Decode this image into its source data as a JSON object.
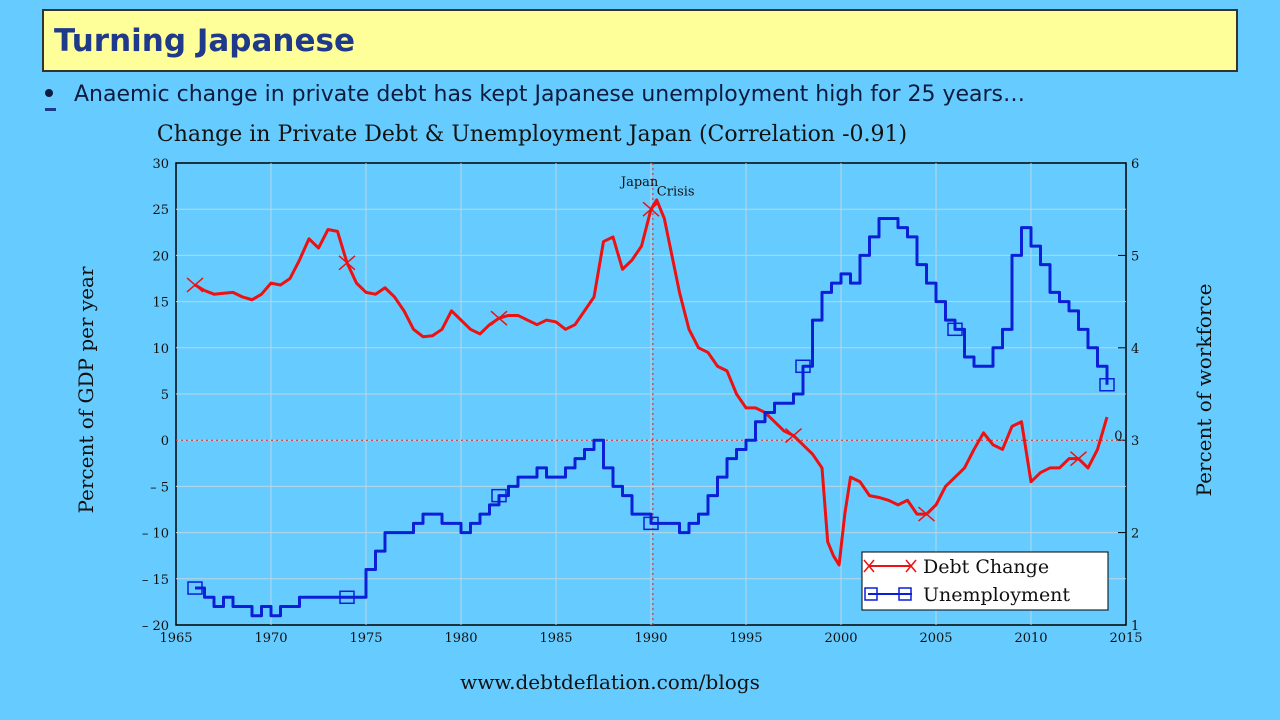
{
  "slide": {
    "title": "Turning Japanese",
    "bullet": "Anaemic change in private debt has kept Japanese unemployment high for 25 years…",
    "footer_url": "www.debtdeflation.com/blogs"
  },
  "colors": {
    "debt": "#ee1111",
    "unemployment": "#0b1fd6",
    "plot_bg": "#66ccff",
    "title_bg": "#ffff99",
    "title_text": "#1f3a8a"
  },
  "chart_data": {
    "type": "line",
    "title": "Change in Private Debt & Unemployment Japan (Correlation -0.91)",
    "xlabel": "",
    "ylabel": "Percent of GDP per year",
    "y2label": "Percent of workforce",
    "xlim": [
      1965,
      2015
    ],
    "ylim": [
      -20,
      30
    ],
    "y2lim": [
      1,
      6
    ],
    "x_ticks": [
      "1965",
      "1970",
      "1975",
      "1980",
      "1985",
      "1990",
      "1995",
      "2000",
      "2005",
      "2010",
      "2015"
    ],
    "y_ticks": [
      "30",
      "25",
      "20",
      "15",
      "10",
      "5",
      "0",
      "– 5",
      "– 10",
      "– 15",
      "– 20"
    ],
    "y2_ticks": [
      "6",
      "5",
      "4",
      "3",
      "2",
      "1"
    ],
    "grid": true,
    "legend": "bottom-right",
    "annotations": [
      {
        "text": "Japan",
        "x": 1989.4,
        "y": 27.5
      },
      {
        "text": "Crisis",
        "x": 1991.3,
        "y": 26.5
      },
      {
        "text": "0",
        "x": 2014.6,
        "y": 0
      }
    ],
    "reference_lines": [
      {
        "axis": "y",
        "value": 0
      },
      {
        "axis": "x",
        "value": 1990.1
      }
    ],
    "series": [
      {
        "name": "Debt Change",
        "axis": "left",
        "marker": "x",
        "x": [
          1966,
          1966.5,
          1967,
          1967.5,
          1968,
          1968.5,
          1969,
          1969.5,
          1970,
          1970.5,
          1971,
          1971.5,
          1972,
          1972.5,
          1973,
          1973.5,
          1974,
          1974.5,
          1975,
          1975.5,
          1976,
          1976.5,
          1977,
          1977.5,
          1978,
          1978.5,
          1979,
          1979.5,
          1980,
          1980.5,
          1981,
          1981.5,
          1982,
          1982.5,
          1983,
          1983.5,
          1984,
          1984.5,
          1985,
          1985.5,
          1986,
          1986.5,
          1987,
          1987.5,
          1988,
          1988.5,
          1989,
          1989.5,
          1990,
          1990.3,
          1990.7,
          1991,
          1991.5,
          1992,
          1992.5,
          1993,
          1993.5,
          1994,
          1994.5,
          1995,
          1995.5,
          1996,
          1996.5,
          1997,
          1997.5,
          1998,
          1998.5,
          1999,
          1999.3,
          1999.6,
          1999.9,
          2000.2,
          2000.5,
          2001,
          2001.5,
          2002,
          2002.5,
          2003,
          2003.5,
          2004,
          2004.5,
          2005,
          2005.5,
          2006,
          2006.5,
          2007,
          2007.5,
          2008,
          2008.5,
          2009,
          2009.5,
          2010,
          2010.5,
          2011,
          2011.5,
          2012,
          2012.5,
          2013,
          2013.5,
          2014
        ],
        "y": [
          16.8,
          16.2,
          15.8,
          15.9,
          16,
          15.5,
          15.2,
          15.8,
          17,
          16.8,
          17.5,
          19.5,
          21.8,
          20.8,
          22.8,
          22.6,
          19.2,
          17,
          16,
          15.8,
          16.5,
          15.5,
          14,
          12,
          11.2,
          11.3,
          12,
          14,
          13,
          12,
          11.5,
          12.5,
          13.2,
          13.5,
          13.5,
          13,
          12.5,
          13,
          12.8,
          12,
          12.5,
          14,
          15.5,
          21.5,
          22,
          18.5,
          19.5,
          21,
          25,
          26,
          24,
          21,
          16,
          12,
          10,
          9.5,
          8,
          7.5,
          5,
          3.5,
          3.5,
          3,
          2,
          1,
          0.5,
          -0.5,
          -1.5,
          -3,
          -11,
          -12.5,
          -13.5,
          -8,
          -4,
          -4.5,
          -6,
          -6.2,
          -6.5,
          -7,
          -6.5,
          -8,
          -8,
          -7,
          -5,
          -4,
          -3,
          -1,
          0.8,
          -0.5,
          -1,
          1.5,
          2,
          -4.5,
          -3.5,
          -3,
          -3,
          -2,
          -2,
          -3,
          -1,
          2.5
        ]
      },
      {
        "name": "Unemployment",
        "axis": "right",
        "marker": "square",
        "x": [
          1966,
          1966.5,
          1967,
          1967.5,
          1968,
          1968.5,
          1969,
          1969.5,
          1970,
          1970.5,
          1971,
          1971.5,
          1972,
          1972.5,
          1973,
          1973.5,
          1974,
          1974.5,
          1975,
          1975.5,
          1976,
          1976.5,
          1977,
          1977.5,
          1978,
          1978.5,
          1979,
          1979.5,
          1980,
          1980.5,
          1981,
          1981.5,
          1982,
          1982.5,
          1983,
          1983.5,
          1984,
          1984.5,
          1985,
          1985.5,
          1986,
          1986.5,
          1987,
          1987.5,
          1988,
          1988.5,
          1989,
          1989.5,
          1990,
          1990.5,
          1991,
          1991.5,
          1992,
          1992.5,
          1993,
          1993.5,
          1994,
          1994.5,
          1995,
          1995.5,
          1996,
          1996.5,
          1997,
          1997.5,
          1998,
          1998.5,
          1999,
          1999.5,
          2000,
          2000.5,
          2001,
          2001.5,
          2002,
          2002.5,
          2003,
          2003.5,
          2004,
          2004.5,
          2005,
          2005.5,
          2006,
          2006.5,
          2007,
          2007.5,
          2008,
          2008.5,
          2009,
          2009.5,
          2010,
          2010.5,
          2011,
          2011.5,
          2012,
          2012.5,
          2013,
          2013.5,
          2014
        ],
        "y": [
          1.4,
          1.3,
          1.2,
          1.3,
          1.2,
          1.2,
          1.1,
          1.2,
          1.1,
          1.2,
          1.2,
          1.3,
          1.3,
          1.3,
          1.3,
          1.3,
          1.3,
          1.3,
          1.6,
          1.8,
          2.0,
          2.0,
          2.0,
          2.1,
          2.2,
          2.2,
          2.1,
          2.1,
          2.0,
          2.1,
          2.2,
          2.3,
          2.4,
          2.5,
          2.6,
          2.6,
          2.7,
          2.6,
          2.6,
          2.7,
          2.8,
          2.9,
          3.0,
          2.7,
          2.5,
          2.4,
          2.2,
          2.2,
          2.1,
          2.1,
          2.1,
          2.0,
          2.1,
          2.2,
          2.4,
          2.6,
          2.8,
          2.9,
          3.0,
          3.2,
          3.3,
          3.4,
          3.4,
          3.5,
          3.8,
          4.3,
          4.6,
          4.7,
          4.8,
          4.7,
          5.0,
          5.2,
          5.4,
          5.4,
          5.3,
          5.2,
          4.9,
          4.7,
          4.5,
          4.3,
          4.2,
          3.9,
          3.8,
          3.8,
          4.0,
          4.2,
          5.0,
          5.3,
          5.1,
          4.9,
          4.6,
          4.5,
          4.4,
          4.2,
          4.0,
          3.8,
          3.6
        ]
      }
    ]
  }
}
